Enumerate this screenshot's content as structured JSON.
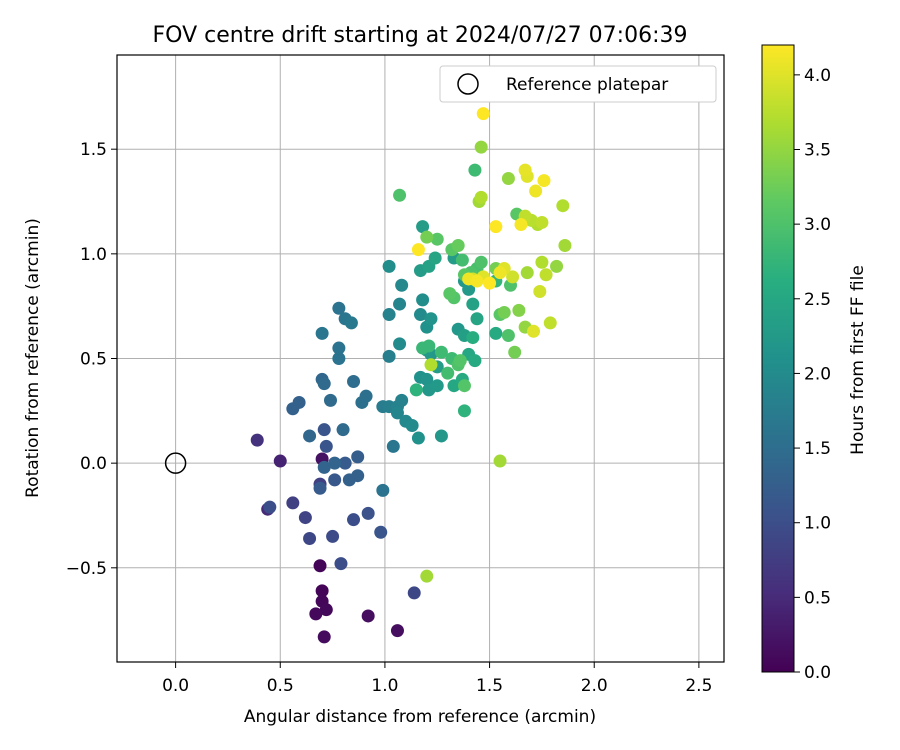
{
  "chart_data": {
    "type": "scatter",
    "title": "FOV centre drift starting at 2024/07/27 07:06:39",
    "xlabel": "Angular distance from reference (arcmin)",
    "ylabel": "Rotation from reference (arcmin)",
    "xlim": [
      -0.28,
      2.62
    ],
    "ylim": [
      -0.95,
      1.95
    ],
    "xticks": [
      0.0,
      0.5,
      1.0,
      1.5,
      2.0,
      2.5
    ],
    "xtick_labels": [
      "0.0",
      "0.5",
      "1.0",
      "1.5",
      "2.0",
      "2.5"
    ],
    "yticks": [
      -0.5,
      0.0,
      0.5,
      1.0,
      1.5
    ],
    "ytick_labels": [
      "−0.5",
      "0.0",
      "0.5",
      "1.0",
      "1.5"
    ],
    "grid": true,
    "legend": {
      "placement": "top-right",
      "entries": [
        "Reference platepar"
      ]
    },
    "reference_point": {
      "x": 0.0,
      "y": 0.0,
      "label": "Reference platepar"
    },
    "colorbar": {
      "label": "Hours from first FF file",
      "range": [
        0.0,
        4.2
      ],
      "ticks": [
        0.0,
        0.5,
        1.0,
        1.5,
        2.0,
        2.5,
        3.0,
        3.5,
        4.0
      ],
      "tick_labels": [
        "0.0",
        "0.5",
        "1.0",
        "1.5",
        "2.0",
        "2.5",
        "3.0",
        "3.5",
        "4.0"
      ],
      "colormap": "viridis"
    },
    "points": [
      [
        0.69,
        -0.49,
        0.05
      ],
      [
        0.7,
        -0.61,
        0.05
      ],
      [
        0.7,
        -0.66,
        0.06
      ],
      [
        0.72,
        -0.7,
        0.08
      ],
      [
        0.67,
        -0.72,
        0.1
      ],
      [
        0.71,
        -0.83,
        0.12
      ],
      [
        0.92,
        -0.73,
        0.15
      ],
      [
        1.06,
        -0.8,
        0.15
      ],
      [
        0.7,
        0.02,
        0.2
      ],
      [
        0.5,
        0.01,
        0.4
      ],
      [
        0.44,
        -0.22,
        0.5
      ],
      [
        0.39,
        0.11,
        0.6
      ],
      [
        0.69,
        -0.1,
        0.8
      ],
      [
        0.56,
        -0.19,
        0.8
      ],
      [
        0.62,
        -0.26,
        0.85
      ],
      [
        0.64,
        -0.36,
        0.9
      ],
      [
        0.75,
        -0.35,
        0.95
      ],
      [
        0.79,
        -0.48,
        1.0
      ],
      [
        0.85,
        -0.27,
        1.0
      ],
      [
        0.92,
        -0.24,
        1.05
      ],
      [
        0.98,
        -0.33,
        1.1
      ],
      [
        1.14,
        -0.62,
        0.9
      ],
      [
        0.45,
        -0.21,
        1.0
      ],
      [
        0.72,
        0.08,
        1.1
      ],
      [
        0.71,
        0.16,
        1.1
      ],
      [
        0.76,
        -0.08,
        1.15
      ],
      [
        0.69,
        -0.12,
        1.2
      ],
      [
        0.81,
        0.0,
        1.2
      ],
      [
        0.87,
        0.03,
        1.25
      ],
      [
        0.83,
        -0.08,
        1.3
      ],
      [
        0.87,
        -0.06,
        1.3
      ],
      [
        0.71,
        -0.02,
        1.35
      ],
      [
        0.76,
        0.0,
        1.35
      ],
      [
        0.56,
        0.26,
        1.3
      ],
      [
        0.59,
        0.29,
        1.3
      ],
      [
        0.64,
        0.13,
        1.4
      ],
      [
        0.7,
        0.4,
        1.4
      ],
      [
        0.71,
        0.38,
        1.45
      ],
      [
        0.74,
        0.3,
        1.45
      ],
      [
        0.8,
        0.16,
        1.45
      ],
      [
        0.85,
        0.39,
        1.5
      ],
      [
        0.89,
        0.29,
        1.55
      ],
      [
        0.91,
        0.32,
        1.55
      ],
      [
        0.99,
        -0.13,
        1.6
      ],
      [
        0.78,
        0.5,
        1.6
      ],
      [
        0.78,
        0.55,
        1.6
      ],
      [
        0.7,
        0.62,
        1.65
      ],
      [
        0.78,
        0.74,
        1.6
      ],
      [
        0.81,
        0.69,
        1.65
      ],
      [
        0.84,
        0.67,
        1.7
      ],
      [
        1.04,
        0.08,
        1.65
      ],
      [
        0.99,
        0.27,
        1.75
      ],
      [
        1.02,
        0.27,
        1.8
      ],
      [
        1.06,
        0.27,
        1.85
      ],
      [
        1.08,
        0.3,
        1.85
      ],
      [
        1.06,
        0.24,
        1.9
      ],
      [
        1.1,
        0.2,
        1.95
      ],
      [
        1.02,
        0.51,
        1.8
      ],
      [
        1.07,
        0.57,
        2.0
      ],
      [
        1.02,
        0.71,
        1.85
      ],
      [
        1.07,
        0.76,
        1.9
      ],
      [
        1.08,
        0.85,
        1.95
      ],
      [
        1.02,
        0.94,
        2.05
      ],
      [
        1.13,
        0.18,
        2.0
      ],
      [
        1.16,
        0.12,
        2.1
      ],
      [
        1.27,
        0.13,
        2.2
      ],
      [
        1.17,
        0.41,
        2.1
      ],
      [
        1.2,
        0.4,
        2.15
      ],
      [
        1.21,
        0.35,
        2.2
      ],
      [
        1.25,
        0.37,
        2.25
      ],
      [
        1.17,
        0.71,
        2.0
      ],
      [
        1.18,
        0.78,
        2.05
      ],
      [
        1.2,
        0.65,
        2.1
      ],
      [
        1.22,
        0.69,
        2.15
      ],
      [
        1.22,
        0.52,
        2.2
      ],
      [
        1.2,
        0.54,
        2.25
      ],
      [
        1.25,
        0.46,
        2.3
      ],
      [
        1.17,
        0.92,
        2.3
      ],
      [
        1.18,
        1.13,
        2.3
      ],
      [
        1.21,
        0.94,
        2.4
      ],
      [
        1.24,
        0.98,
        2.45
      ],
      [
        1.33,
        0.98,
        2.3
      ],
      [
        1.35,
        0.64,
        2.2
      ],
      [
        1.38,
        0.87,
        2.2
      ],
      [
        1.4,
        0.83,
        2.25
      ],
      [
        1.38,
        0.61,
        2.35
      ],
      [
        1.42,
        0.76,
        2.4
      ],
      [
        1.44,
        0.69,
        2.45
      ],
      [
        1.4,
        0.52,
        2.5
      ],
      [
        1.43,
        0.49,
        2.55
      ],
      [
        1.42,
        0.6,
        2.6
      ],
      [
        1.33,
        0.37,
        2.5
      ],
      [
        1.37,
        0.4,
        2.55
      ],
      [
        1.38,
        0.25,
        2.7
      ],
      [
        1.15,
        0.35,
        2.7
      ],
      [
        1.18,
        0.55,
        2.8
      ],
      [
        1.21,
        0.56,
        2.8
      ],
      [
        1.27,
        0.53,
        2.85
      ],
      [
        1.32,
        0.5,
        2.85
      ],
      [
        1.3,
        0.43,
        2.9
      ],
      [
        1.35,
        0.47,
        3.0
      ],
      [
        1.36,
        0.49,
        3.05
      ],
      [
        1.38,
        0.37,
        3.05
      ],
      [
        1.33,
        0.79,
        3.05
      ],
      [
        1.31,
        0.81,
        3.1
      ],
      [
        1.37,
        0.97,
        2.9
      ],
      [
        1.41,
        0.91,
        3.0
      ],
      [
        1.44,
        0.93,
        2.95
      ],
      [
        1.46,
        0.96,
        3.0
      ],
      [
        1.38,
        0.9,
        3.1
      ],
      [
        1.32,
        1.02,
        3.1
      ],
      [
        1.35,
        1.04,
        3.2
      ],
      [
        1.43,
        1.4,
        2.85
      ],
      [
        1.07,
        1.28,
        3.0
      ],
      [
        1.25,
        1.07,
        3.1
      ],
      [
        1.2,
        1.08,
        3.3
      ],
      [
        1.53,
        0.62,
        2.55
      ],
      [
        1.53,
        0.87,
        2.75
      ],
      [
        1.53,
        0.93,
        3.3
      ],
      [
        1.55,
        0.71,
        3.1
      ],
      [
        1.57,
        0.72,
        3.3
      ],
      [
        1.59,
        0.61,
        3.0
      ],
      [
        1.6,
        0.85,
        3.0
      ],
      [
        1.62,
        0.53,
        3.3
      ],
      [
        1.63,
        1.19,
        3.1
      ],
      [
        1.64,
        0.73,
        3.4
      ],
      [
        1.67,
        0.65,
        3.5
      ],
      [
        1.68,
        0.91,
        3.6
      ],
      [
        1.75,
        0.96,
        3.7
      ],
      [
        1.77,
        0.9,
        3.8
      ],
      [
        1.74,
        0.82,
        3.9
      ],
      [
        1.79,
        0.67,
        3.8
      ],
      [
        1.71,
        0.63,
        4.0
      ],
      [
        1.82,
        0.94,
        3.5
      ],
      [
        1.86,
        1.04,
        3.6
      ],
      [
        1.85,
        1.23,
        3.7
      ],
      [
        1.75,
        1.15,
        3.8
      ],
      [
        1.73,
        1.14,
        3.7
      ],
      [
        1.7,
        1.16,
        3.75
      ],
      [
        1.67,
        1.18,
        3.8
      ],
      [
        1.72,
        1.3,
        4.1
      ],
      [
        1.76,
        1.35,
        4.15
      ],
      [
        1.68,
        1.37,
        4.0
      ],
      [
        1.67,
        1.4,
        4.05
      ],
      [
        1.59,
        1.36,
        3.5
      ],
      [
        1.46,
        1.51,
        3.5
      ],
      [
        1.45,
        1.25,
        3.6
      ],
      [
        1.47,
        1.67,
        4.2
      ],
      [
        1.46,
        1.27,
        3.7
      ],
      [
        1.53,
        1.13,
        4.2
      ],
      [
        1.61,
        0.89,
        3.9
      ],
      [
        1.57,
        0.93,
        4.0
      ],
      [
        1.55,
        0.91,
        4.1
      ],
      [
        1.5,
        0.86,
        4.2
      ],
      [
        1.47,
        0.89,
        4.0
      ],
      [
        1.44,
        0.87,
        4.15
      ],
      [
        1.42,
        0.88,
        3.9
      ],
      [
        1.4,
        0.88,
        4.1
      ],
      [
        1.16,
        1.02,
        4.2
      ],
      [
        1.22,
        0.47,
        3.7
      ],
      [
        1.2,
        -0.54,
        3.6
      ],
      [
        1.55,
        0.01,
        3.6
      ],
      [
        1.65,
        1.14,
        4.15
      ]
    ]
  }
}
